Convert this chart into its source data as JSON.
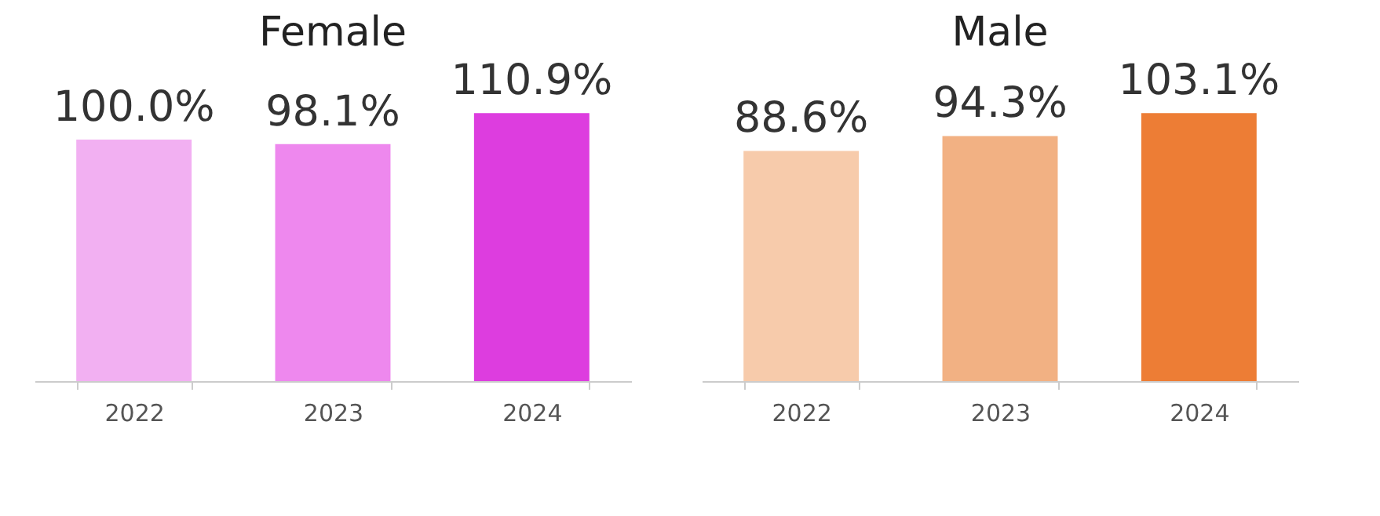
{
  "chart_data": [
    {
      "type": "bar",
      "title": "Female",
      "categories": [
        "2022",
        "2023",
        "2024"
      ],
      "values": [
        100.0,
        98.1,
        110.9
      ],
      "colors": [
        "#f2b0f2",
        "#ee88ee",
        "#dd3ddf"
      ],
      "value_labels": [
        "100.0%",
        "98.1%",
        "110.9%"
      ]
    },
    {
      "type": "bar",
      "title": "Male",
      "categories": [
        "2022",
        "2023",
        "2024"
      ],
      "values": [
        88.6,
        94.3,
        103.1
      ],
      "colors": [
        "#f7cbab",
        "#f2b183",
        "#ed7d35"
      ],
      "value_labels": [
        "88.6%",
        "94.3%",
        "103.1%"
      ]
    }
  ]
}
